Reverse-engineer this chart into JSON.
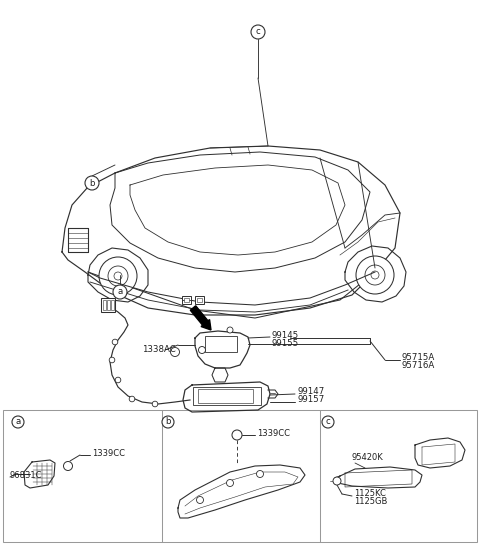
{
  "bg_color": "#ffffff",
  "line_color": "#303030",
  "text_color": "#202020",
  "box_border": "#999999",
  "figsize": [
    4.8,
    5.45
  ],
  "dpi": 100,
  "labels": {
    "a": "a",
    "b": "b",
    "c": "c",
    "1338AC": "1338AC",
    "99145": "99145",
    "99155": "99155",
    "95715A": "95715A",
    "95716A": "95716A",
    "99147": "99147",
    "99157": "99157",
    "96831C": "96831C",
    "1339CC": "1339CC",
    "95420K": "95420K",
    "1125KC": "1125KC",
    "1125GB": "1125GB"
  }
}
